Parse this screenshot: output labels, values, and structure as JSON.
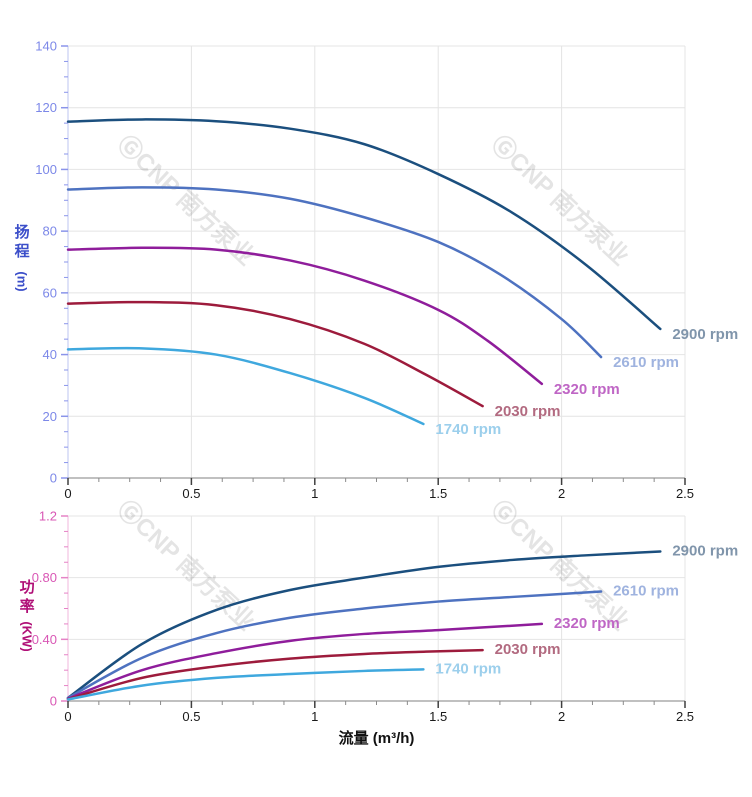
{
  "watermark": {
    "logo": "Ⓖ",
    "text": "CNP 南方泵业",
    "color": "#000000",
    "opacity": 0.1
  },
  "x_axis_title": "流量 (m³/h)",
  "chart_data": [
    {
      "type": "line",
      "title": "",
      "xlabel": "",
      "ylabel": "扬程 (m)",
      "ylabel_stack": "扬程",
      "ylabel_unit": "(m)",
      "xlim": [
        0,
        2.5
      ],
      "ylim": [
        0,
        140
      ],
      "grid": true,
      "legend_position": "end-of-line",
      "x_ticks": [
        {
          "v": 0,
          "label": "0"
        },
        {
          "v": 0.5,
          "label": "0.5"
        },
        {
          "v": 1,
          "label": "1"
        },
        {
          "v": 1.5,
          "label": "1.5"
        },
        {
          "v": 2,
          "label": "2"
        },
        {
          "v": 2.5,
          "label": "2.5"
        }
      ],
      "y_ticks": [
        {
          "v": 0,
          "label": "0"
        },
        {
          "v": 20,
          "label": "20"
        },
        {
          "v": 40,
          "label": "40"
        },
        {
          "v": 60,
          "label": "60"
        },
        {
          "v": 80,
          "label": "80"
        },
        {
          "v": 100,
          "label": "100"
        },
        {
          "v": 120,
          "label": "120"
        },
        {
          "v": 140,
          "label": "140"
        }
      ],
      "x_minor_step": 0.125,
      "x_major_step": 0.5,
      "y_minor_step": 5,
      "y_major_step": 20,
      "colors": {
        "tick_label": "#7c88e8",
        "tick_mark": "#8a94ea",
        "axis_title": "#3b4ec9",
        "axis_line": "#c9cef3",
        "x_axis_line": "#9b9b9b",
        "grid": "#e4e4e4",
        "x_tick_label": "#1a1a1a"
      },
      "series": [
        {
          "name": "2900 rpm",
          "color": "#1b4f7e",
          "label_color": "#8095ab",
          "points": [
            [
              0,
              115.5
            ],
            [
              0.3,
              116.2
            ],
            [
              0.6,
              115.6
            ],
            [
              0.9,
              113.2
            ],
            [
              1.2,
              108.2
            ],
            [
              1.5,
              98.5
            ],
            [
              1.8,
              86
            ],
            [
              2.1,
              69
            ],
            [
              2.4,
              48.3
            ]
          ]
        },
        {
          "name": "2610 rpm",
          "color": "#4e72c0",
          "label_color": "#9fb3df",
          "points": [
            [
              0,
              93.5
            ],
            [
              0.3,
              94.2
            ],
            [
              0.6,
              93.5
            ],
            [
              0.9,
              90.5
            ],
            [
              1.2,
              84.5
            ],
            [
              1.5,
              76.5
            ],
            [
              1.75,
              66
            ],
            [
              2.0,
              51.5
            ],
            [
              2.16,
              39.2
            ]
          ]
        },
        {
          "name": "2320 rpm",
          "color": "#8f1d9b",
          "label_color": "#bf66c5",
          "points": [
            [
              0,
              74
            ],
            [
              0.3,
              74.6
            ],
            [
              0.6,
              74
            ],
            [
              0.9,
              70.5
            ],
            [
              1.2,
              64
            ],
            [
              1.5,
              54.5
            ],
            [
              1.7,
              44.5
            ],
            [
              1.92,
              30.5
            ]
          ]
        },
        {
          "name": "2030 rpm",
          "color": "#9d1b3c",
          "label_color": "#b26a80",
          "points": [
            [
              0,
              56.5
            ],
            [
              0.3,
              57
            ],
            [
              0.6,
              56
            ],
            [
              0.9,
              51.5
            ],
            [
              1.2,
              43.5
            ],
            [
              1.45,
              33.5
            ],
            [
              1.68,
              23.3
            ]
          ]
        },
        {
          "name": "1740 rpm",
          "color": "#3fa8de",
          "label_color": "#9ccfec",
          "points": [
            [
              0,
              41.7
            ],
            [
              0.3,
              42
            ],
            [
              0.6,
              40
            ],
            [
              0.9,
              34
            ],
            [
              1.2,
              26
            ],
            [
              1.44,
              17.5
            ]
          ]
        }
      ]
    },
    {
      "type": "line",
      "title": "",
      "xlabel": "流量 (m³/h)",
      "ylabel": "功率 (KW)",
      "ylabel_stack": "功率",
      "ylabel_unit": "(KW)",
      "xlim": [
        0,
        2.5
      ],
      "ylim": [
        0,
        1.2
      ],
      "grid": true,
      "legend_position": "end-of-line",
      "x_ticks": [
        {
          "v": 0,
          "label": "0"
        },
        {
          "v": 0.5,
          "label": "0.5"
        },
        {
          "v": 1,
          "label": "1"
        },
        {
          "v": 1.5,
          "label": "1.5"
        },
        {
          "v": 2,
          "label": "2"
        },
        {
          "v": 2.5,
          "label": "2.5"
        }
      ],
      "y_ticks": [
        {
          "v": 0,
          "label": "0"
        },
        {
          "v": 0.4,
          "label": "0.40"
        },
        {
          "v": 0.8,
          "label": "0.80"
        },
        {
          "v": 1.2,
          "label": "1.2"
        }
      ],
      "x_minor_step": 0.125,
      "x_major_step": 0.5,
      "y_minor_step": 0.1,
      "y_major_step": 0.4,
      "colors": {
        "tick_label": "#d957b5",
        "tick_mark": "#e583c6",
        "axis_title": "#b01077",
        "axis_line": "#f3c3e2",
        "x_axis_line": "#9b9b9b",
        "grid": "#e4e4e4",
        "x_tick_label": "#1a1a1a"
      },
      "series": [
        {
          "name": "2900 rpm",
          "color": "#1b4f7e",
          "label_color": "#8095ab",
          "points": [
            [
              0,
              0.02
            ],
            [
              0.3,
              0.37
            ],
            [
              0.6,
              0.59
            ],
            [
              0.9,
              0.72
            ],
            [
              1.2,
              0.8
            ],
            [
              1.5,
              0.87
            ],
            [
              1.8,
              0.915
            ],
            [
              2.1,
              0.945
            ],
            [
              2.4,
              0.97
            ]
          ]
        },
        {
          "name": "2610 rpm",
          "color": "#4e72c0",
          "label_color": "#9fb3df",
          "points": [
            [
              0,
              0.02
            ],
            [
              0.3,
              0.28
            ],
            [
              0.6,
              0.44
            ],
            [
              0.9,
              0.54
            ],
            [
              1.2,
              0.6
            ],
            [
              1.5,
              0.645
            ],
            [
              1.8,
              0.675
            ],
            [
              2.16,
              0.71
            ]
          ]
        },
        {
          "name": "2320 rpm",
          "color": "#8f1d9b",
          "label_color": "#bf66c5",
          "points": [
            [
              0,
              0.015
            ],
            [
              0.3,
              0.2
            ],
            [
              0.6,
              0.31
            ],
            [
              0.9,
              0.39
            ],
            [
              1.2,
              0.435
            ],
            [
              1.5,
              0.46
            ],
            [
              1.92,
              0.5
            ]
          ]
        },
        {
          "name": "2030 rpm",
          "color": "#9d1b3c",
          "label_color": "#b26a80",
          "points": [
            [
              0,
              0.012
            ],
            [
              0.3,
              0.15
            ],
            [
              0.6,
              0.225
            ],
            [
              0.9,
              0.275
            ],
            [
              1.2,
              0.305
            ],
            [
              1.45,
              0.32
            ],
            [
              1.68,
              0.33
            ]
          ]
        },
        {
          "name": "1740 rpm",
          "color": "#3fa8de",
          "label_color": "#9ccfec",
          "points": [
            [
              0,
              0.01
            ],
            [
              0.3,
              0.1
            ],
            [
              0.6,
              0.15
            ],
            [
              0.9,
              0.175
            ],
            [
              1.2,
              0.195
            ],
            [
              1.44,
              0.205
            ]
          ]
        }
      ]
    }
  ]
}
